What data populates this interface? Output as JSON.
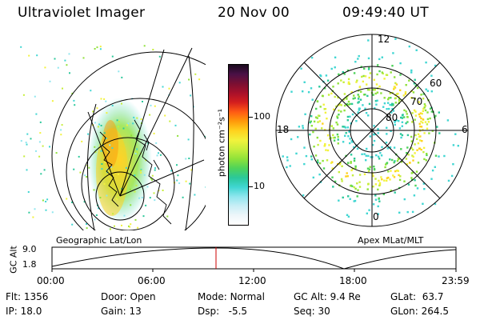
{
  "header": {
    "instrument": "Ultraviolet Imager",
    "date": "20 Nov 00",
    "time": "09:49:40 UT"
  },
  "left_panel": {
    "caption": "Geographic Lat/Lon"
  },
  "right_panel": {
    "caption": "Apex MLat/MLT",
    "mlt_labels": {
      "top": "12",
      "left": "18",
      "right": "6",
      "bottom": "0"
    },
    "lat_labels": [
      "60",
      "70",
      "80"
    ]
  },
  "colorbar": {
    "unit_label": "photon cm⁻²s⁻¹",
    "ticks": [
      "100",
      "10"
    ],
    "colors": [
      "#1a0a1e",
      "#4a1046",
      "#7a0f32",
      "#a8102a",
      "#d41e1e",
      "#ff5a14",
      "#ff9a0a",
      "#ffd21e",
      "#f2f23c",
      "#c6ee3c",
      "#8fe23a",
      "#4ed35a",
      "#2bc89a",
      "#40d6d2",
      "#8fe6ee",
      "#c8eef6",
      "#eef6fa",
      "#ffffff"
    ]
  },
  "altitude_plot": {
    "ylabel": "GC Alt",
    "yticks": [
      "9.0",
      "1.8"
    ],
    "xticks": [
      "00:00",
      "06:00",
      "12:00",
      "18:00",
      "23:59"
    ],
    "marker_color": "#cc0000"
  },
  "info": {
    "row1": [
      {
        "label": "Flt:",
        "value": "1356"
      },
      {
        "label": "Door:",
        "value": "Open"
      },
      {
        "label": "Mode:",
        "value": "Normal"
      },
      {
        "label": "GC Alt:",
        "value": "9.4 Re"
      },
      {
        "label": "GLat:",
        "value": "63.7"
      }
    ],
    "row2": [
      {
        "label": "IP:",
        "value": "18.0"
      },
      {
        "label": "Gain:",
        "value": "13"
      },
      {
        "label": "Dsp:",
        "value": "-5.5"
      },
      {
        "label": "Seq:",
        "value": "30"
      },
      {
        "label": "GLon:",
        "value": "264.5"
      }
    ]
  }
}
